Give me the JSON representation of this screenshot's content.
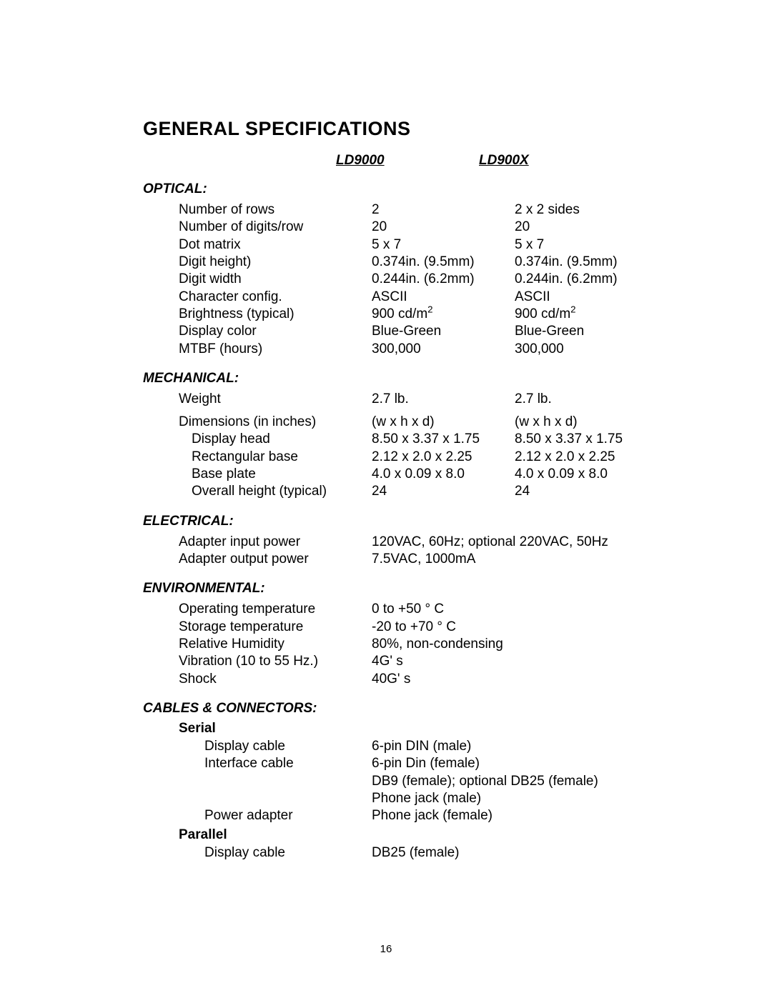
{
  "title": "GENERAL SPECIFICATIONS",
  "page_number": "16",
  "product_headers": {
    "a": "LD9000",
    "b": "LD900X"
  },
  "sections": {
    "optical": {
      "heading": "OPTICAL:",
      "rows": [
        {
          "label": "Number of rows",
          "a": "2",
          "b": "2 x 2 sides"
        },
        {
          "label": "Number of digits/row",
          "a": "20",
          "b": "20"
        },
        {
          "label": "Dot matrix",
          "a": "5 x 7",
          "b": "5 x 7"
        },
        {
          "label": "Digit height)",
          "a": "0.374in. (9.5mm)",
          "b": "0.374in. (9.5mm)"
        },
        {
          "label": "Digit width",
          "a": "0.244in. (6.2mm)",
          "b": "0.244in. (6.2mm)"
        },
        {
          "label": "Character config.",
          "a": "ASCII",
          "b": "ASCII"
        },
        {
          "label": "Brightness (typical)",
          "a_html": "900 cd/m<sup>2</sup>",
          "b_html": "900 cd/m<sup>2</sup>"
        },
        {
          "label": "Display color",
          "a": "Blue-Green",
          "b": "Blue-Green"
        },
        {
          "label": "MTBF (hours)",
          "a": "300,000",
          "b": "300,000"
        }
      ]
    },
    "mechanical": {
      "heading": "MECHANICAL:",
      "weight": {
        "label": "Weight",
        "a": "2.7 lb.",
        "b": "2.7 lb."
      },
      "dims_header": {
        "label": "Dimensions (in inches)",
        "a": "(w x h x d)",
        "b": "(w x h x d)"
      },
      "dims_rows": [
        {
          "label": "Display head",
          "a": "8.50 x 3.37 x 1.75",
          "b": "8.50 x 3.37 x 1.75"
        },
        {
          "label": "Rectangular base",
          "a": "2.12 x 2.0 x 2.25",
          "b": "2.12 x 2.0 x 2.25"
        },
        {
          "label": "Base plate",
          "a": "4.0 x 0.09 x 8.0",
          "b": "4.0 x 0.09 x 8.0"
        },
        {
          "label": "Overall height (typical)",
          "a": "24",
          "b": "24"
        }
      ]
    },
    "electrical": {
      "heading": "ELECTRICAL:",
      "rows": [
        {
          "label": "Adapter input power",
          "a": "120VAC, 60Hz; optional 220VAC, 50Hz"
        },
        {
          "label": "Adapter output power",
          "a": "7.5VAC, 1000mA"
        }
      ]
    },
    "environmental": {
      "heading": "ENVIRONMENTAL:",
      "rows": [
        {
          "label": "Operating temperature",
          "a_html": "0 to +50 &deg; C"
        },
        {
          "label": "Storage temperature",
          "a_html": "-20 to +70 &deg; C"
        },
        {
          "label": "Relative Humidity",
          "a": "80%, non-condensing"
        },
        {
          "label": "Vibration (10 to 55 Hz.)",
          "a": "4G' s"
        },
        {
          "label": "Shock",
          "a": "40G' s"
        }
      ]
    },
    "cables": {
      "heading": "CABLES & CONNECTORS:",
      "serial_head": "Serial",
      "serial_rows": [
        {
          "label": "Display cable",
          "a": "6-pin DIN (male)"
        },
        {
          "label": "Interface cable",
          "a": "6-pin Din (female)"
        },
        {
          "label": "",
          "a": "DB9 (female); optional DB25 (female)"
        },
        {
          "label": "",
          "a": "Phone jack (male)"
        },
        {
          "label": "Power adapter",
          "a": "Phone jack (female)"
        }
      ],
      "parallel_head": "Parallel",
      "parallel_rows": [
        {
          "label": "Display cable",
          "a": "DB25 (female)"
        }
      ]
    }
  }
}
